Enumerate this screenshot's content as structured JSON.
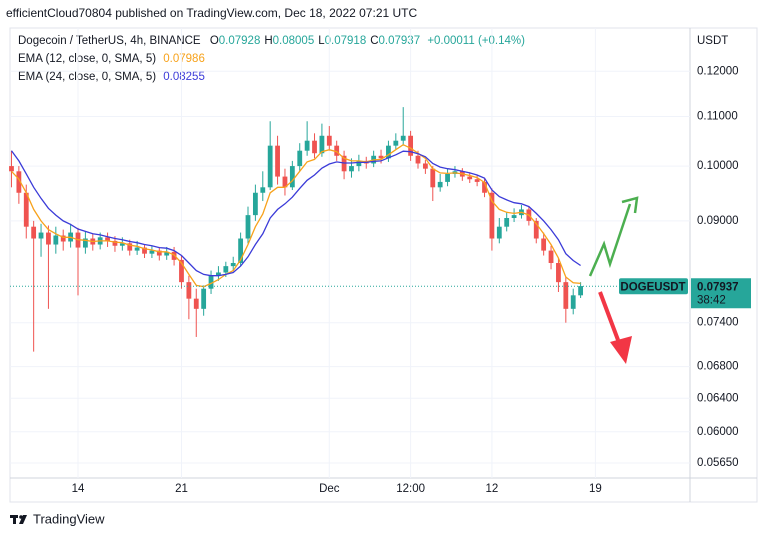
{
  "header": "efficientCloud70804 published on TradingView.com, Dec 18, 2022 07:21 UTC",
  "footer": "TradingView",
  "chart_data": {
    "type": "candlestick",
    "symbol": "Dogecoin / TetherUS, 4h, BINANCE",
    "ohlc": [
      {
        "label": "O",
        "value": 0.07928
      },
      {
        "label": "H",
        "value": 0.08005
      },
      {
        "label": "L",
        "value": 0.07918
      },
      {
        "label": "C",
        "value": 0.07937
      }
    ],
    "change": "+0.00011 (+0.14%)",
    "y_unit": "USDT",
    "log_scale": true,
    "grid": true,
    "up_color": "#26a69a",
    "down_color": "#ef5350",
    "price_tag": {
      "name": "DOGEUSDT",
      "value": 0.07937,
      "countdown": "38:42"
    },
    "x": [
      -4.5,
      -4,
      -3.5,
      -3,
      -2.5,
      -2,
      -1.5,
      -1,
      -0.5,
      0,
      0.5,
      1,
      1.5,
      2,
      2.5,
      3,
      3.5,
      4,
      4.5,
      5,
      5.5,
      6,
      6.5,
      7,
      7.5,
      8,
      8.5,
      9,
      9.5,
      10,
      10.5,
      11,
      11.5,
      12,
      12.5,
      13,
      13.5,
      14,
      14.5,
      15,
      15.5,
      16,
      16.5,
      17,
      17.5,
      18,
      18.5,
      19,
      19.5,
      20,
      20.5,
      21,
      21.5,
      22,
      22.5,
      23,
      23.5,
      24,
      24.5,
      25,
      25.5,
      26,
      26.5,
      27,
      27.5,
      28,
      28.5,
      29,
      29.5,
      30,
      30.5,
      31,
      31.5,
      32,
      32.5,
      33,
      33.5,
      34
    ],
    "open": [
      0.1,
      0.099,
      0.095,
      0.089,
      0.087,
      0.088,
      0.086,
      0.0875,
      0.0865,
      0.088,
      0.0855,
      0.087,
      0.086,
      0.0872,
      0.0866,
      0.0858,
      0.0862,
      0.085,
      0.0855,
      0.0845,
      0.085,
      0.0842,
      0.0848,
      0.0835,
      0.08,
      0.0775,
      0.076,
      0.079,
      0.081,
      0.0815,
      0.0825,
      0.083,
      0.087,
      0.091,
      0.095,
      0.096,
      0.104,
      0.098,
      0.096,
      0.1,
      0.103,
      0.105,
      0.1025,
      0.106,
      0.104,
      0.102,
      0.099,
      0.1,
      0.101,
      0.1005,
      0.102,
      0.1015,
      0.104,
      0.105,
      0.106,
      0.102,
      0.1005,
      0.0995,
      0.096,
      0.097,
      0.0985,
      0.099,
      0.098,
      0.0975,
      0.097,
      0.095,
      0.087,
      0.089,
      0.0905,
      0.091,
      0.092,
      0.09,
      0.087,
      0.085,
      0.083,
      0.08,
      0.076,
      0.078
    ],
    "high": [
      0.103,
      0.1,
      0.0965,
      0.09,
      0.0895,
      0.0892,
      0.089,
      0.0885,
      0.0895,
      0.0888,
      0.0882,
      0.0878,
      0.088,
      0.088,
      0.0874,
      0.0872,
      0.0868,
      0.0866,
      0.086,
      0.0858,
      0.0856,
      0.0856,
      0.0856,
      0.0842,
      0.081,
      0.079,
      0.0795,
      0.0818,
      0.0825,
      0.0832,
      0.084,
      0.088,
      0.0925,
      0.0965,
      0.099,
      0.109,
      0.106,
      0.0995,
      0.101,
      0.1045,
      0.109,
      0.1065,
      0.1085,
      0.108,
      0.105,
      0.103,
      0.1015,
      0.1022,
      0.1018,
      0.103,
      0.1032,
      0.105,
      0.1065,
      0.112,
      0.107,
      0.103,
      0.1012,
      0.1,
      0.0985,
      0.0995,
      0.1,
      0.0996,
      0.0988,
      0.0982,
      0.0976,
      0.0958,
      0.0905,
      0.0915,
      0.0922,
      0.0928,
      0.0926,
      0.0905,
      0.088,
      0.0858,
      0.0838,
      0.0808,
      0.079,
      0.08
    ],
    "low": [
      0.096,
      0.093,
      0.087,
      0.07,
      0.084,
      0.076,
      0.0845,
      0.085,
      0.0855,
      0.078,
      0.0845,
      0.085,
      0.0852,
      0.0856,
      0.0848,
      0.085,
      0.0842,
      0.0843,
      0.0838,
      0.0838,
      0.0834,
      0.0835,
      0.0826,
      0.079,
      0.0745,
      0.072,
      0.075,
      0.0782,
      0.0802,
      0.0808,
      0.0818,
      0.0825,
      0.0862,
      0.09,
      0.0935,
      0.0955,
      0.0965,
      0.0945,
      0.0955,
      0.099,
      0.102,
      0.1015,
      0.1018,
      0.103,
      0.101,
      0.0975,
      0.0978,
      0.099,
      0.0995,
      0.0998,
      0.1005,
      0.1008,
      0.1032,
      0.104,
      0.101,
      0.0995,
      0.0985,
      0.0935,
      0.0952,
      0.0962,
      0.0978,
      0.0972,
      0.0968,
      0.0962,
      0.0942,
      0.085,
      0.0862,
      0.0882,
      0.0898,
      0.0904,
      0.0892,
      0.0862,
      0.0842,
      0.082,
      0.0785,
      0.074,
      0.0752,
      0.0776
    ],
    "close": [
      0.099,
      0.095,
      0.089,
      0.087,
      0.088,
      0.086,
      0.0875,
      0.0865,
      0.088,
      0.0855,
      0.087,
      0.086,
      0.0872,
      0.0866,
      0.0858,
      0.0862,
      0.085,
      0.0855,
      0.0845,
      0.085,
      0.0842,
      0.0848,
      0.0835,
      0.08,
      0.0775,
      0.076,
      0.079,
      0.081,
      0.0815,
      0.0825,
      0.083,
      0.087,
      0.091,
      0.095,
      0.096,
      0.104,
      0.098,
      0.096,
      0.1,
      0.103,
      0.105,
      0.1025,
      0.106,
      0.104,
      0.102,
      0.099,
      0.1,
      0.101,
      0.1005,
      0.102,
      0.1015,
      0.104,
      0.105,
      0.106,
      0.102,
      0.1005,
      0.0995,
      0.096,
      0.097,
      0.0985,
      0.099,
      0.098,
      0.0975,
      0.097,
      0.095,
      0.087,
      0.089,
      0.0905,
      0.091,
      0.092,
      0.09,
      0.087,
      0.085,
      0.083,
      0.08,
      0.076,
      0.078,
      0.0794
    ],
    "series": [
      {
        "name": "EMA (12, close, 0, SMA, 5)",
        "last": 0.07986,
        "color": "#f7a21b",
        "values": [
          0.099,
          0.0975,
          0.095,
          0.092,
          0.09,
          0.0885,
          0.0878,
          0.0872,
          0.0872,
          0.0868,
          0.0867,
          0.0865,
          0.0866,
          0.0866,
          0.0864,
          0.0863,
          0.0859,
          0.0857,
          0.0853,
          0.0851,
          0.0848,
          0.0848,
          0.0843,
          0.083,
          0.0812,
          0.0795,
          0.0793,
          0.0798,
          0.0804,
          0.0812,
          0.0818,
          0.0835,
          0.086,
          0.089,
          0.0912,
          0.095,
          0.096,
          0.096,
          0.0972,
          0.099,
          0.1008,
          0.1013,
          0.1028,
          0.1032,
          0.1028,
          0.1015,
          0.101,
          0.101,
          0.1008,
          0.1012,
          0.1013,
          0.1022,
          0.1032,
          0.1042,
          0.1035,
          0.1025,
          0.1015,
          0.0995,
          0.0987,
          0.0986,
          0.0987,
          0.0985,
          0.0982,
          0.0978,
          0.0969,
          0.0935,
          0.092,
          0.0915,
          0.0913,
          0.0915,
          0.091,
          0.0895,
          0.0878,
          0.086,
          0.0838,
          0.0808,
          0.0799,
          0.0798
        ]
      },
      {
        "name": "EMA (24, close, 0, SMA, 5)",
        "last": 0.08255,
        "color": "#3b3bd8",
        "values": [
          0.103,
          0.101,
          0.0985,
          0.096,
          0.094,
          0.0922,
          0.091,
          0.09,
          0.0894,
          0.0886,
          0.0882,
          0.0878,
          0.0876,
          0.0873,
          0.087,
          0.0868,
          0.0865,
          0.0863,
          0.086,
          0.0858,
          0.0855,
          0.0854,
          0.085,
          0.0842,
          0.083,
          0.0818,
          0.0812,
          0.081,
          0.081,
          0.0812,
          0.0815,
          0.0825,
          0.084,
          0.086,
          0.0878,
          0.0905,
          0.092,
          0.093,
          0.0942,
          0.0958,
          0.0973,
          0.0983,
          0.0996,
          0.1004,
          0.1008,
          0.1006,
          0.1006,
          0.1007,
          0.1007,
          0.1009,
          0.101,
          0.1016,
          0.1022,
          0.1029,
          0.1028,
          0.1024,
          0.1018,
          0.1005,
          0.0998,
          0.0995,
          0.0993,
          0.099,
          0.0987,
          0.0983,
          0.0977,
          0.0955,
          0.0943,
          0.0937,
          0.0932,
          0.093,
          0.0925,
          0.0913,
          0.09,
          0.0885,
          0.0868,
          0.0845,
          0.0834,
          0.0826
        ]
      }
    ],
    "xlim": [
      -4.6,
      41.4
    ],
    "ylim": [
      0.0549,
      0.1304
    ],
    "xticks": [
      {
        "value": 0,
        "label": "14"
      },
      {
        "value": 7,
        "label": "21"
      },
      {
        "value": 17,
        "label": "Dec"
      },
      {
        "value": 22.5,
        "label": "12:00"
      },
      {
        "value": 28,
        "label": "12"
      },
      {
        "value": 35,
        "label": "19"
      }
    ],
    "yticks": [
      {
        "value": 0.12,
        "label": "0.12000"
      },
      {
        "value": 0.11,
        "label": "0.11000"
      },
      {
        "value": 0.1,
        "label": "0.10000"
      },
      {
        "value": 0.09,
        "label": "0.09000"
      },
      {
        "value": 0.074,
        "label": "0.07400"
      },
      {
        "value": 0.068,
        "label": "0.06800"
      },
      {
        "value": 0.064,
        "label": "0.06400"
      },
      {
        "value": 0.06,
        "label": "0.06000"
      },
      {
        "value": 0.0565,
        "label": "0.05650"
      }
    ]
  }
}
